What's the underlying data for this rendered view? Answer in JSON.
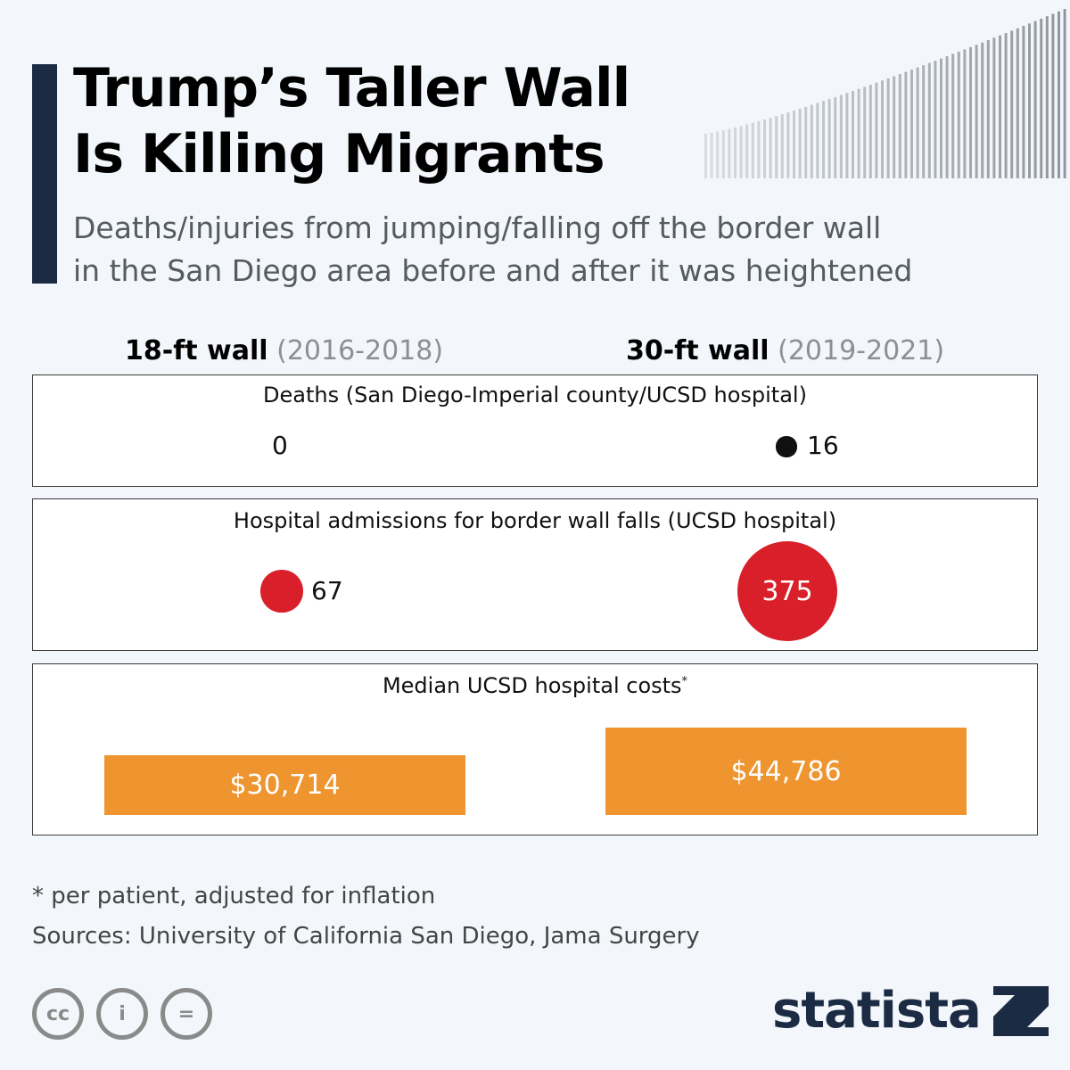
{
  "header": {
    "title_line1": "Trump’s Taller Wall",
    "title_line2": "Is Killing Migrants",
    "subtitle_line1": "Deaths/injuries from jumping/falling off the border wall",
    "subtitle_line2": "in the San Diego area before and after it was heightened"
  },
  "columns": [
    {
      "label": "18-ft wall",
      "years": "(2016-2018)"
    },
    {
      "label": "30-ft wall",
      "years": "(2019-2021)"
    }
  ],
  "chart_data": {
    "type": "table",
    "categories": [
      "18-ft wall (2016-2018)",
      "30-ft wall (2019-2021)"
    ],
    "panels": [
      {
        "title": "Deaths (San Diego-Imperial county/UCSD hospital)",
        "type": "bubble",
        "values": [
          0,
          16
        ],
        "value_labels": [
          "0",
          "16"
        ],
        "color": "#111111"
      },
      {
        "title": "Hospital admissions for border wall falls (UCSD hospital)",
        "type": "bubble",
        "values": [
          67,
          375
        ],
        "value_labels": [
          "67",
          "375"
        ],
        "color": "#d9202a"
      },
      {
        "title": "Median UCSD hospital costs",
        "title_note": "*",
        "type": "bar",
        "values": [
          30714,
          44786
        ],
        "value_labels": [
          "$30,714",
          "$44,786"
        ],
        "color": "#ee9530"
      }
    ]
  },
  "footer": {
    "footnote": "* per patient, adjusted for inflation",
    "sources": "Sources: University of California San Diego, Jama Surgery",
    "cc_icons": [
      "cc-icon",
      "attribution-icon",
      "no-derivatives-icon"
    ],
    "cc_glyphs": [
      "cc",
      "i",
      "="
    ],
    "brand": "statista"
  }
}
